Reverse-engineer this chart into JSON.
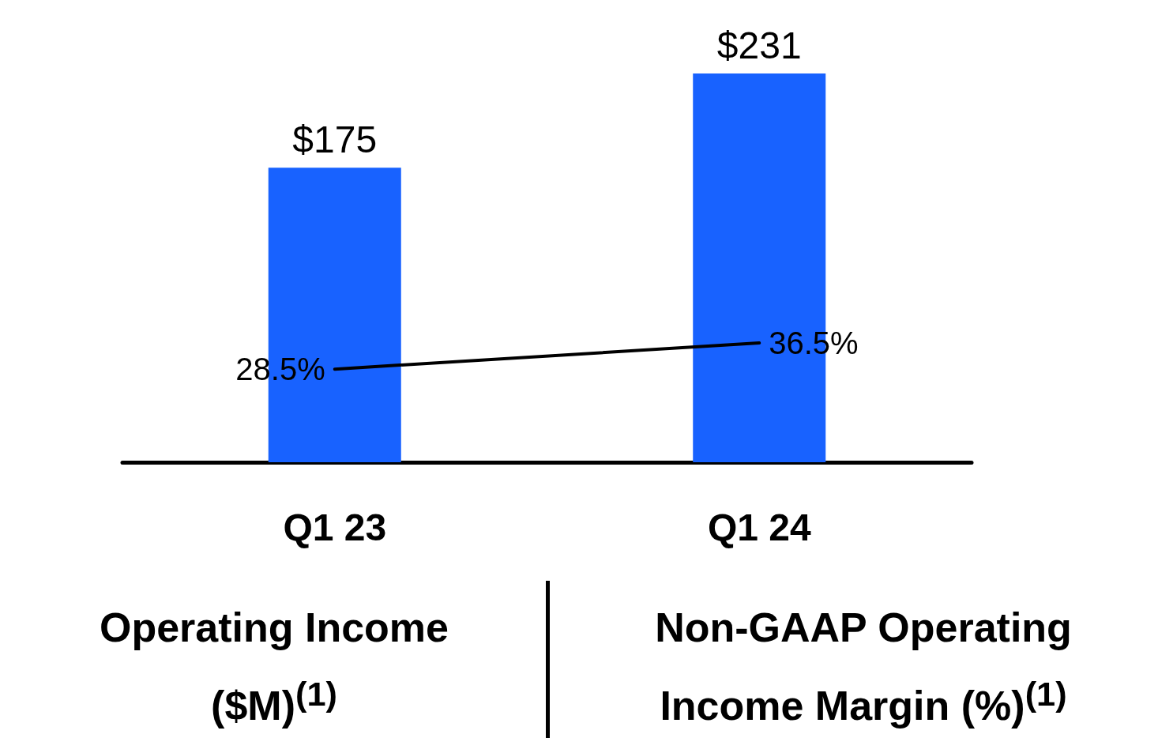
{
  "chart_data": {
    "type": "bar",
    "categories": [
      "Q1 23",
      "Q1 24"
    ],
    "series": [
      {
        "color": "#1862ff",
        "values": [
          175,
          231
        ],
        "value_labels": [
          "$175",
          "$231"
        ]
      },
      {
        "type": "line",
        "axis": "y2",
        "color": "#000000",
        "values": [
          28.5,
          36.5
        ],
        "value_labels": [
          "28.5%",
          "36.5%"
        ]
      }
    ],
    "marker": "none",
    "grid": false,
    "annotations": [
      "Operating Income ($M)$^{(1)}$",
      "Non-GAAP Operating Income Margin (%)$^{(1)}$"
    ]
  }
}
